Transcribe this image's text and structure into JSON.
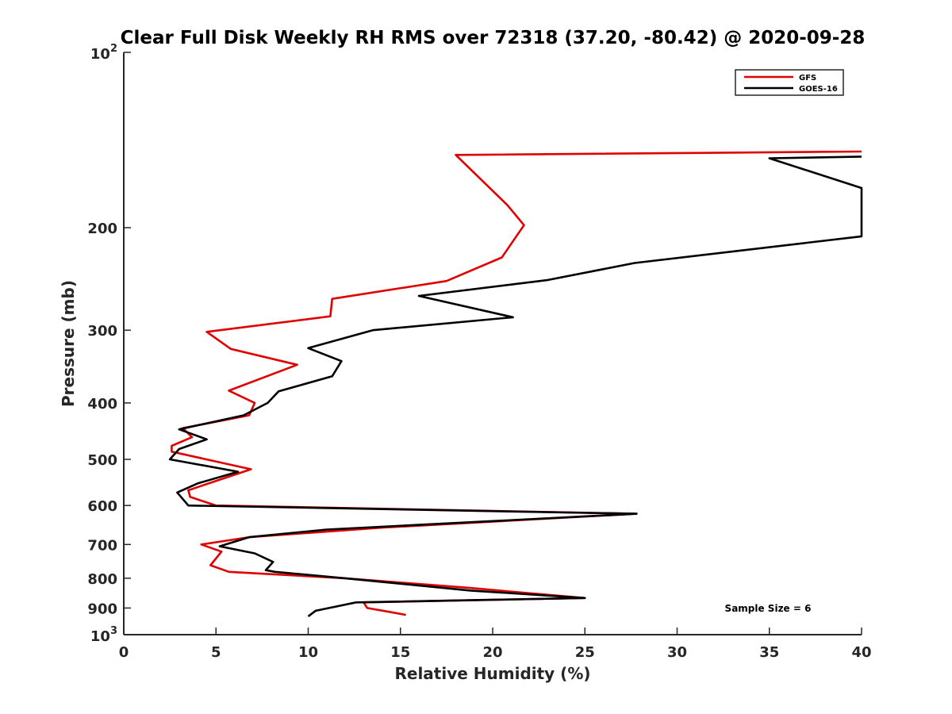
{
  "chart_data": {
    "type": "line",
    "title": "Clear Full Disk Weekly RH RMS over 72318 (37.20, -80.42) @ 2020-09-28",
    "xlabel": "Relative Humidity (%)",
    "ylabel": "Pressure (mb)",
    "xlim": [
      0,
      40
    ],
    "ylim": [
      100,
      1000
    ],
    "y_scale": "log",
    "y_reversed": true,
    "x_ticks": [
      "0",
      "5",
      "10",
      "15",
      "20",
      "25",
      "30",
      "35",
      "40"
    ],
    "y_ticks": [
      {
        "value": 100,
        "base": "10",
        "exp": "2"
      },
      {
        "value": 200,
        "label": "200"
      },
      {
        "value": 300,
        "label": "300"
      },
      {
        "value": 400,
        "label": "400"
      },
      {
        "value": 500,
        "label": "500"
      },
      {
        "value": 600,
        "label": "600"
      },
      {
        "value": 700,
        "label": "700"
      },
      {
        "value": 800,
        "label": "800"
      },
      {
        "value": 900,
        "label": "900"
      },
      {
        "value": 1000,
        "base": "10",
        "exp": "3"
      }
    ],
    "grid": false,
    "legend_position": "top-right",
    "annotation": "Sample Size = 6",
    "series": [
      {
        "name": "GFS",
        "color": "#e00000",
        "points": [
          [
            40.0,
            148
          ],
          [
            18.0,
            150
          ],
          [
            20.8,
            183
          ],
          [
            21.7,
            198
          ],
          [
            20.5,
            225
          ],
          [
            17.5,
            247
          ],
          [
            11.3,
            265
          ],
          [
            11.2,
            284
          ],
          [
            4.5,
            302
          ],
          [
            5.8,
            323
          ],
          [
            9.4,
            344
          ],
          [
            5.7,
            381
          ],
          [
            7.1,
            400
          ],
          [
            6.8,
            420
          ],
          [
            3.2,
            442
          ],
          [
            3.7,
            458
          ],
          [
            2.6,
            474
          ],
          [
            2.6,
            485
          ],
          [
            6.9,
            520
          ],
          [
            4.6,
            550
          ],
          [
            3.5,
            565
          ],
          [
            3.6,
            580
          ],
          [
            5.0,
            600
          ],
          [
            27.8,
            620
          ],
          [
            14.0,
            655
          ],
          [
            6.8,
            680
          ],
          [
            4.2,
            700
          ],
          [
            5.3,
            720
          ],
          [
            4.7,
            760
          ],
          [
            5.7,
            780
          ],
          [
            12.0,
            800
          ],
          [
            18.5,
            830
          ],
          [
            25.0,
            865
          ],
          [
            13.0,
            880
          ],
          [
            13.2,
            900
          ],
          [
            14.5,
            915
          ],
          [
            15.3,
            925
          ]
        ]
      },
      {
        "name": "GOES-16",
        "color": "#000000",
        "points": [
          [
            40.0,
            151
          ],
          [
            35.0,
            152
          ],
          [
            40.0,
            171
          ],
          [
            40.0,
            207
          ],
          [
            27.7,
            230
          ],
          [
            23.0,
            246
          ],
          [
            16.0,
            262
          ],
          [
            21.1,
            285
          ],
          [
            13.5,
            300
          ],
          [
            10.0,
            322
          ],
          [
            11.8,
            339
          ],
          [
            11.3,
            360
          ],
          [
            8.4,
            382
          ],
          [
            7.8,
            400
          ],
          [
            6.5,
            420
          ],
          [
            3.0,
            444
          ],
          [
            4.5,
            462
          ],
          [
            3.0,
            480
          ],
          [
            2.5,
            500
          ],
          [
            6.2,
            525
          ],
          [
            4.0,
            550
          ],
          [
            2.9,
            570
          ],
          [
            3.5,
            600
          ],
          [
            27.8,
            620
          ],
          [
            11.0,
            660
          ],
          [
            6.8,
            680
          ],
          [
            5.2,
            705
          ],
          [
            7.1,
            725
          ],
          [
            8.1,
            750
          ],
          [
            7.7,
            775
          ],
          [
            8.2,
            780
          ],
          [
            12.0,
            800
          ],
          [
            18.8,
            840
          ],
          [
            25.0,
            865
          ],
          [
            12.6,
            880
          ],
          [
            10.4,
            910
          ],
          [
            10.0,
            930
          ]
        ]
      }
    ]
  }
}
